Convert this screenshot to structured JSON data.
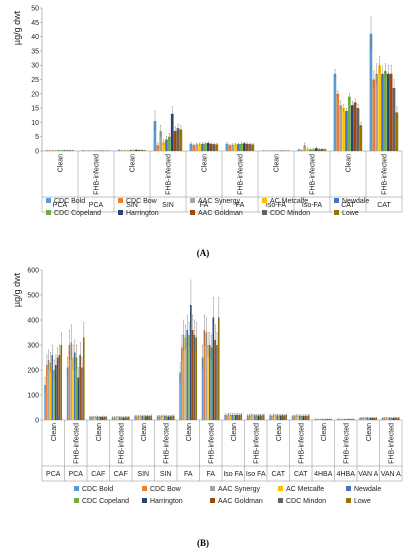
{
  "chart_data": [
    {
      "type": "bar",
      "panel_label": "(A)",
      "ylabel": "µg/g dwt",
      "ylim": [
        0,
        50
      ],
      "yticks": [
        0,
        5,
        10,
        15,
        20,
        25,
        30,
        35,
        40,
        45,
        50
      ],
      "grid": false,
      "legend_position": "bottom",
      "groups": [
        {
          "condition": "Clean",
          "compound": "PCA"
        },
        {
          "condition": "FHB-infected",
          "compound": "PCA"
        },
        {
          "condition": "Clean",
          "compound": "SIN"
        },
        {
          "condition": "FHB-infected",
          "compound": "SIN"
        },
        {
          "condition": "Clean",
          "compound": "FA"
        },
        {
          "condition": "FHB-infected",
          "compound": "FA"
        },
        {
          "condition": "Clean",
          "compound": "Iso-FA"
        },
        {
          "condition": "FHB-infected",
          "compound": "Iso-FA"
        },
        {
          "condition": "Clean",
          "compound": "CAT"
        },
        {
          "condition": "FHB-infected",
          "compound": "CAT"
        }
      ],
      "series": [
        {
          "name": "CDC Bold",
          "color": "#5b9bd5",
          "values": [
            0.2,
            0.2,
            0.3,
            10.5,
            2.5,
            2.5,
            0.1,
            0.5,
            27.0,
            41.0
          ],
          "errors": [
            0.1,
            0.1,
            0.2,
            3.5,
            0.5,
            0.5,
            0.05,
            0.2,
            1.5,
            6.0
          ]
        },
        {
          "name": "CDC Bow",
          "color": "#ed7d31",
          "values": [
            0.2,
            0.1,
            0.2,
            2.0,
            2.0,
            2.0,
            0.1,
            0.3,
            20.0,
            25.0
          ],
          "errors": [
            0.1,
            0.05,
            0.1,
            0.8,
            0.4,
            0.4,
            0.05,
            0.1,
            1.0,
            3.0
          ]
        },
        {
          "name": "AAC Synergy",
          "color": "#a5a5a5",
          "values": [
            0.2,
            0.1,
            0.2,
            7.0,
            2.3,
            2.2,
            0.1,
            2.0,
            16.0,
            27.0
          ],
          "errors": [
            0.1,
            0.05,
            0.1,
            2.0,
            0.4,
            0.4,
            0.05,
            0.8,
            1.5,
            3.5
          ]
        },
        {
          "name": "AC Metcalfe",
          "color": "#ffc000",
          "values": [
            0.2,
            0.1,
            0.2,
            3.0,
            2.4,
            2.3,
            0.1,
            0.8,
            15.0,
            30.0
          ],
          "errors": [
            0.1,
            0.05,
            0.1,
            1.0,
            0.4,
            0.4,
            0.05,
            0.3,
            1.2,
            3.0
          ]
        },
        {
          "name": "Newdale",
          "color": "#4472c4",
          "values": [
            0.2,
            0.1,
            0.3,
            4.0,
            2.5,
            2.4,
            0.1,
            0.5,
            14.0,
            27.0
          ],
          "errors": [
            0.1,
            0.05,
            0.1,
            1.0,
            0.4,
            0.4,
            0.05,
            0.2,
            1.0,
            2.5
          ]
        },
        {
          "name": "CDC Copeland",
          "color": "#70ad47",
          "values": [
            0.2,
            0.1,
            0.3,
            5.0,
            2.6,
            2.5,
            0.1,
            0.6,
            19.0,
            28.0
          ],
          "errors": [
            0.1,
            0.05,
            0.1,
            1.2,
            0.4,
            0.4,
            0.05,
            0.2,
            1.2,
            2.5
          ]
        },
        {
          "name": "Harrington",
          "color": "#264478",
          "values": [
            0.2,
            0.1,
            0.4,
            13.0,
            2.8,
            2.7,
            0.1,
            1.0,
            16.0,
            27.0
          ],
          "errors": [
            0.1,
            0.05,
            0.1,
            2.5,
            0.4,
            0.4,
            0.05,
            0.4,
            1.5,
            3.0
          ]
        },
        {
          "name": "AAC Goldman",
          "color": "#9e480e",
          "values": [
            0.2,
            0.1,
            0.3,
            7.0,
            2.5,
            2.5,
            0.1,
            0.6,
            17.0,
            27.0
          ],
          "errors": [
            0.1,
            0.05,
            0.1,
            1.5,
            0.4,
            0.4,
            0.05,
            0.2,
            1.2,
            3.0
          ]
        },
        {
          "name": "CDC Mindon",
          "color": "#636363",
          "values": [
            0.2,
            0.1,
            0.3,
            8.0,
            2.4,
            2.4,
            0.1,
            0.7,
            15.0,
            22.0
          ],
          "errors": [
            0.1,
            0.05,
            0.1,
            1.5,
            0.4,
            0.4,
            0.05,
            0.2,
            1.2,
            3.0
          ]
        },
        {
          "name": "Lowe",
          "color": "#997300",
          "values": [
            0.2,
            0.1,
            0.2,
            7.5,
            2.3,
            2.3,
            0.1,
            0.6,
            9.0,
            13.5
          ],
          "errors": [
            0.1,
            0.05,
            0.1,
            1.5,
            0.4,
            0.4,
            0.05,
            0.2,
            1.0,
            2.0
          ]
        }
      ]
    },
    {
      "type": "bar",
      "panel_label": "(B)",
      "ylabel": "µg/g dwt",
      "ylim": [
        0,
        600
      ],
      "yticks": [
        0,
        100,
        200,
        300,
        400,
        500,
        600
      ],
      "grid": false,
      "legend_position": "bottom",
      "groups": [
        {
          "condition": "Clean",
          "compound": "PCA"
        },
        {
          "condition": "FHB-infected",
          "compound": "PCA"
        },
        {
          "condition": "Clean",
          "compound": "CAF"
        },
        {
          "condition": "FHB-infected",
          "compound": "CAF"
        },
        {
          "condition": "Clean",
          "compound": "SIN"
        },
        {
          "condition": "FHB-infected",
          "compound": "SIN"
        },
        {
          "condition": "Clean",
          "compound": "FA"
        },
        {
          "condition": "FHB-infected",
          "compound": "FA"
        },
        {
          "condition": "Clean",
          "compound": "Iso FA"
        },
        {
          "condition": "FHB-infected",
          "compound": "Iso FA"
        },
        {
          "condition": "Clean",
          "compound": "CAT"
        },
        {
          "condition": "FHB-infected",
          "compound": "CAT"
        },
        {
          "condition": "Clean",
          "compound": "4HBA"
        },
        {
          "condition": "FHB-infected",
          "compound": "4HBA"
        },
        {
          "condition": "Clean",
          "compound": "VAN A"
        },
        {
          "condition": "FHB-infected",
          "compound": "VAN A"
        }
      ],
      "series": [
        {
          "name": "CDC Bold",
          "color": "#5b9bd5",
          "values": [
            140,
            210,
            12,
            10,
            15,
            15,
            190,
            250,
            20,
            18,
            18,
            15,
            3,
            3,
            8,
            8
          ],
          "errors": [
            30,
            40,
            3,
            3,
            4,
            4,
            40,
            50,
            5,
            4,
            4,
            4,
            1,
            1,
            2,
            2
          ]
        },
        {
          "name": "CDC Bow",
          "color": "#ed7d31",
          "values": [
            220,
            300,
            12,
            10,
            14,
            14,
            290,
            360,
            18,
            18,
            16,
            15,
            3,
            3,
            8,
            8
          ],
          "errors": [
            40,
            60,
            3,
            3,
            4,
            4,
            50,
            60,
            5,
            4,
            4,
            4,
            1,
            1,
            2,
            2
          ]
        },
        {
          "name": "AAC Synergy",
          "color": "#a5a5a5",
          "values": [
            240,
            310,
            13,
            11,
            16,
            16,
            340,
            350,
            22,
            20,
            20,
            18,
            3,
            3,
            9,
            9
          ],
          "errors": [
            40,
            70,
            3,
            3,
            4,
            4,
            60,
            60,
            5,
            5,
            5,
            4,
            1,
            1,
            2,
            2
          ]
        },
        {
          "name": "AC Metcalfe",
          "color": "#ffc000",
          "values": [
            230,
            250,
            12,
            11,
            15,
            15,
            330,
            300,
            20,
            18,
            18,
            16,
            3,
            3,
            8,
            8
          ],
          "errors": [
            40,
            50,
            3,
            3,
            4,
            4,
            50,
            50,
            5,
            4,
            4,
            4,
            1,
            1,
            2,
            2
          ]
        },
        {
          "name": "Newdale",
          "color": "#4472c4",
          "values": [
            260,
            270,
            13,
            11,
            16,
            16,
            360,
            300,
            21,
            19,
            19,
            17,
            3,
            3,
            9,
            9
          ],
          "errors": [
            40,
            50,
            3,
            3,
            4,
            4,
            60,
            50,
            5,
            4,
            4,
            4,
            1,
            1,
            2,
            2
          ]
        },
        {
          "name": "CDC Copeland",
          "color": "#70ad47",
          "values": [
            200,
            250,
            12,
            11,
            15,
            15,
            340,
            290,
            20,
            18,
            18,
            16,
            3,
            3,
            8,
            8
          ],
          "errors": [
            40,
            50,
            3,
            3,
            4,
            4,
            50,
            50,
            5,
            4,
            4,
            4,
            1,
            1,
            2,
            2
          ]
        },
        {
          "name": "Harrington",
          "color": "#264478",
          "values": [
            220,
            170,
            12,
            10,
            15,
            14,
            460,
            410,
            20,
            18,
            18,
            16,
            3,
            3,
            8,
            8
          ],
          "errors": [
            40,
            40,
            3,
            3,
            4,
            4,
            100,
            80,
            5,
            4,
            4,
            4,
            1,
            1,
            2,
            2
          ]
        },
        {
          "name": "AAC Goldman",
          "color": "#9e480e",
          "values": [
            250,
            260,
            13,
            11,
            16,
            15,
            360,
            320,
            21,
            19,
            19,
            17,
            3,
            3,
            9,
            9
          ],
          "errors": [
            40,
            50,
            3,
            3,
            4,
            4,
            60,
            60,
            5,
            4,
            4,
            4,
            1,
            1,
            2,
            2
          ]
        },
        {
          "name": "CDC Mindon",
          "color": "#636363",
          "values": [
            260,
            210,
            12,
            11,
            15,
            15,
            340,
            300,
            20,
            18,
            18,
            16,
            3,
            3,
            8,
            8
          ],
          "errors": [
            40,
            40,
            3,
            3,
            4,
            4,
            60,
            50,
            5,
            4,
            4,
            4,
            1,
            1,
            2,
            2
          ]
        },
        {
          "name": "Lowe",
          "color": "#997300",
          "values": [
            300,
            330,
            13,
            12,
            17,
            16,
            330,
            410,
            22,
            20,
            20,
            18,
            3,
            3,
            9,
            9
          ],
          "errors": [
            50,
            60,
            3,
            3,
            4,
            4,
            60,
            80,
            5,
            4,
            4,
            4,
            1,
            1,
            2,
            2
          ]
        }
      ]
    }
  ]
}
